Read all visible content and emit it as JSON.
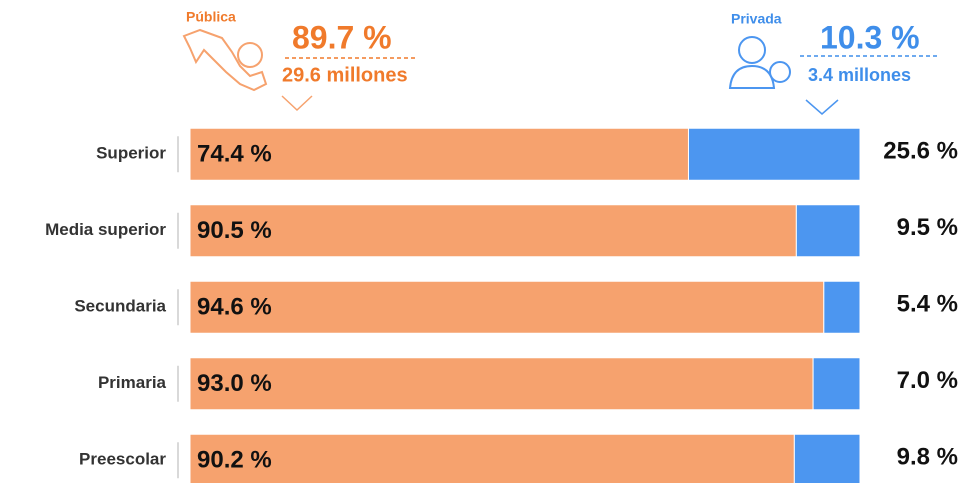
{
  "chart_data": {
    "type": "bar",
    "stacked": true,
    "orientation": "horizontal",
    "categories": [
      "Superior",
      "Media superior",
      "Secundaria",
      "Primaria",
      "Preescolar"
    ],
    "series": [
      {
        "name": "Pública",
        "color": "#f6a26e",
        "text_color": "#f07a2b",
        "values": [
          74.4,
          90.5,
          94.6,
          93.0,
          90.2
        ],
        "value_labels": [
          "74.4 %",
          "90.5 %",
          "94.6 %",
          "93.0 %",
          "90.2 %"
        ],
        "total": 89.7,
        "total_label": "89.7 %",
        "people": 29.6,
        "people_label": "29.6 millones"
      },
      {
        "name": "Privada",
        "color": "#4c96f0",
        "text_color": "#3f8eea",
        "values": [
          25.6,
          9.5,
          5.4,
          7.0,
          9.8
        ],
        "value_labels": [
          "25.6 %",
          "9.5 %",
          "5.4 %",
          "7.0 %",
          "9.8 %"
        ],
        "total": 10.3,
        "total_label": "10.3 %",
        "people": 3.4,
        "people_label": "3.4 millones"
      }
    ]
  }
}
